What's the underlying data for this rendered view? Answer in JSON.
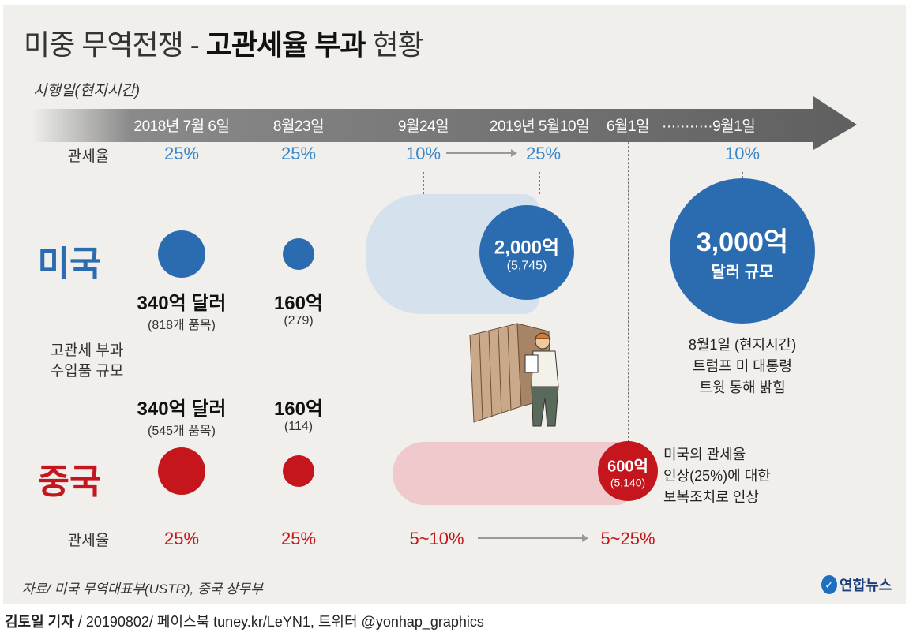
{
  "title": {
    "part1": "미중 무역전쟁 - ",
    "part2": "고관세율 부과",
    "part3": " 현황"
  },
  "timeline_label": "시행일(현지시간)",
  "dates": [
    "2018년 7월 6일",
    "8월23일",
    "9월24일",
    "2019년 5월10일",
    "6월1일",
    "···········9월1일"
  ],
  "us": {
    "label": "미국",
    "tariff_label": "관세율",
    "tariffs": [
      "25%",
      "25%",
      "10%",
      "25%",
      "10%"
    ],
    "round1": {
      "amount": "340억 달러",
      "items": "(818개 품목)"
    },
    "round2": {
      "amount": "160억",
      "items": "(279)"
    },
    "round3": {
      "amount": "2,000억",
      "items": "(5,745)"
    },
    "round4": {
      "amount": "3,000억",
      "unit": "달러 규모",
      "note": [
        "8월1일 (현지시간)",
        "트럼프 미 대통령",
        "트윗 통해 밝힘"
      ]
    }
  },
  "middle_label": [
    "고관세 부과",
    "수입품 규모"
  ],
  "china": {
    "label": "중국",
    "tariff_label": "관세율",
    "tariffs": [
      "25%",
      "25%",
      "5~10%",
      "5~25%"
    ],
    "round1": {
      "amount": "340억 달러",
      "items": "(545개 품목)"
    },
    "round2": {
      "amount": "160억",
      "items": "(114)"
    },
    "round3": {
      "amount": "600억",
      "items": "(5,140)",
      "note": [
        "미국의 관세율",
        "인상(25%)에 대한",
        "보복조치로 인상"
      ]
    }
  },
  "source": "자료/ 미국 무역대표부(USTR), 중국 상무부",
  "logo": "연합뉴스",
  "byline": {
    "author": "김토일 기자",
    "rest": " / 20190802/ 페이스북 tuney.kr/LeYN1, 트위터 @yonhap_graphics"
  },
  "colors": {
    "us": "#2b6cb0",
    "us_light": "#d5e2ed",
    "china": "#c4161c",
    "china_light": "#efc9cc"
  }
}
